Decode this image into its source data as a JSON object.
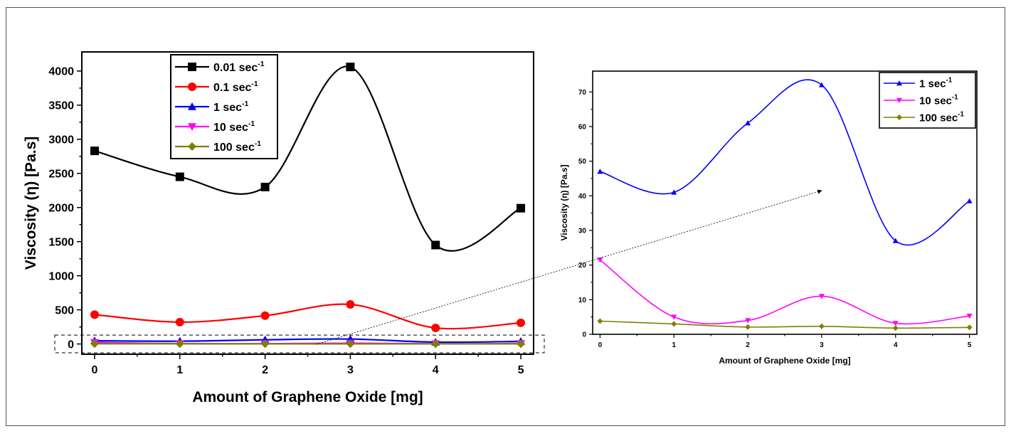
{
  "chart_data": [
    {
      "type": "line",
      "xlabel": "Amount of Graphene Oxide [mg]",
      "ylabel": "Viscosity (η) [Pa.s]",
      "x": [
        0,
        1,
        2,
        3,
        4,
        5
      ],
      "xlim": [
        -0.15,
        5.15
      ],
      "ylim": [
        -150,
        4280
      ],
      "xticks": [
        0,
        1,
        2,
        3,
        4,
        5
      ],
      "yticks": [
        0,
        500,
        1000,
        1500,
        2000,
        2500,
        3000,
        3500,
        4000
      ],
      "legend_position": "top-left",
      "grid": false,
      "series": [
        {
          "name": "0.01 sec",
          "exponent": "-1",
          "color": "#000000",
          "marker": "square",
          "values": [
            2830,
            2450,
            2300,
            4060,
            1450,
            1990
          ]
        },
        {
          "name": "0.1 sec",
          "exponent": "-1",
          "color": "#ff0000",
          "marker": "circle",
          "values": [
            430,
            320,
            415,
            580,
            235,
            310
          ]
        },
        {
          "name": "1 sec",
          "exponent": "-1",
          "color": "#0000ff",
          "marker": "triangle-up",
          "values": [
            47,
            41,
            61,
            72,
            27,
            38
          ]
        },
        {
          "name": "10 sec",
          "exponent": "-1",
          "color": "#ff00ff",
          "marker": "triangle-down",
          "values": [
            21,
            5,
            4,
            11,
            3,
            5
          ]
        },
        {
          "name": "100 sec",
          "exponent": "-1",
          "color": "#808000",
          "marker": "diamond",
          "values": [
            4,
            3,
            2,
            2,
            2,
            2
          ]
        }
      ]
    },
    {
      "type": "line",
      "xlabel": "Amount of Graphene Oxide [mg]",
      "ylabel": "Viscosity (η) [Pa.s]",
      "x": [
        0,
        1,
        2,
        3,
        4,
        5
      ],
      "xlim": [
        -0.1,
        5.1
      ],
      "ylim": [
        0,
        76
      ],
      "xticks": [
        0,
        1,
        2,
        3,
        4,
        5
      ],
      "yticks": [
        0,
        10,
        20,
        30,
        40,
        50,
        60,
        70
      ],
      "legend_position": "top-right",
      "grid": false,
      "series": [
        {
          "name": "1 sec",
          "exponent": "-1",
          "color": "#0000ff",
          "marker": "triangle-up",
          "values": [
            47,
            41,
            61,
            72,
            27,
            38.5
          ]
        },
        {
          "name": "10 sec",
          "exponent": "-1",
          "color": "#ff00ff",
          "marker": "triangle-down",
          "values": [
            21.5,
            5,
            4,
            11,
            3.2,
            5.3
          ]
        },
        {
          "name": "100 sec",
          "exponent": "-1",
          "color": "#808000",
          "marker": "diamond",
          "values": [
            3.8,
            3,
            2.1,
            2.3,
            1.8,
            2
          ]
        }
      ]
    }
  ]
}
